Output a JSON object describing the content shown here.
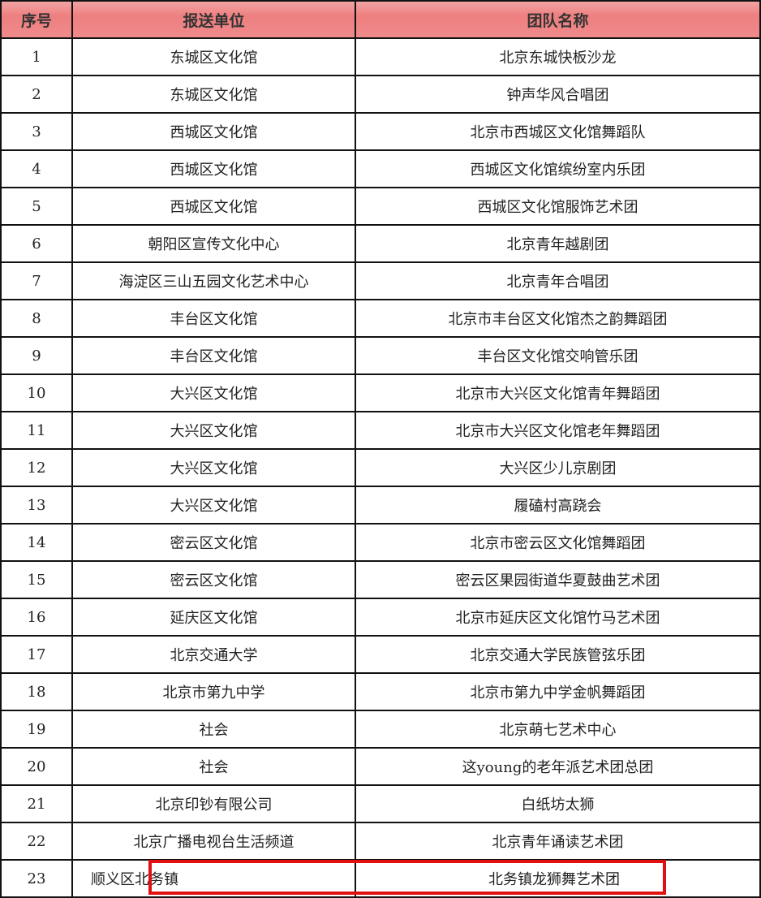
{
  "headers": {
    "index": "序号",
    "unit": "报送单位",
    "team": "团队名称"
  },
  "rows": [
    {
      "index": "1",
      "unit": "东城区文化馆",
      "team": "北京东城快板沙龙"
    },
    {
      "index": "2",
      "unit": "东城区文化馆",
      "team": "钟声华风合唱团"
    },
    {
      "index": "3",
      "unit": "西城区文化馆",
      "team": "北京市西城区文化馆舞蹈队"
    },
    {
      "index": "4",
      "unit": "西城区文化馆",
      "team": "西城区文化馆缤纷室内乐团"
    },
    {
      "index": "5",
      "unit": "西城区文化馆",
      "team": "西城区文化馆服饰艺术团"
    },
    {
      "index": "6",
      "unit": "朝阳区宣传文化中心",
      "team": "北京青年越剧团"
    },
    {
      "index": "7",
      "unit": "海淀区三山五园文化艺术中心",
      "team": "北京青年合唱团"
    },
    {
      "index": "8",
      "unit": "丰台区文化馆",
      "team": "北京市丰台区文化馆杰之韵舞蹈团"
    },
    {
      "index": "9",
      "unit": "丰台区文化馆",
      "team": "丰台区文化馆交响管乐团"
    },
    {
      "index": "10",
      "unit": "大兴区文化馆",
      "team": "北京市大兴区文化馆青年舞蹈团"
    },
    {
      "index": "11",
      "unit": "大兴区文化馆",
      "team": "北京市大兴区文化馆老年舞蹈团"
    },
    {
      "index": "12",
      "unit": "大兴区文化馆",
      "team": "大兴区少儿京剧团"
    },
    {
      "index": "13",
      "unit": "大兴区文化馆",
      "team": "履磕村高跷会"
    },
    {
      "index": "14",
      "unit": "密云区文化馆",
      "team": "北京市密云区文化馆舞蹈团"
    },
    {
      "index": "15",
      "unit": "密云区文化馆",
      "team": "密云区果园街道华夏鼓曲艺术团"
    },
    {
      "index": "16",
      "unit": "延庆区文化馆",
      "team": "北京市延庆区文化馆竹马艺术团"
    },
    {
      "index": "17",
      "unit": "北京交通大学",
      "team": "北京交通大学民族管弦乐团"
    },
    {
      "index": "18",
      "unit": "北京市第九中学",
      "team": "北京市第九中学金帆舞蹈团"
    },
    {
      "index": "19",
      "unit": "社会",
      "team": "北京萌七艺术中心"
    },
    {
      "index": "20",
      "unit": "社会",
      "team": "这young的老年派艺术团总团"
    },
    {
      "index": "21",
      "unit": "北京印钞有限公司",
      "team": "白纸坊太狮"
    },
    {
      "index": "22",
      "unit": "北京广播电视台生活频道",
      "team": "北京青年诵读艺术团"
    },
    {
      "index": "23",
      "unit": "顺义区北务镇",
      "team": "北务镇龙狮舞艺术团"
    }
  ],
  "highlight_color": "#e01010",
  "header_color": "#ee7f80"
}
